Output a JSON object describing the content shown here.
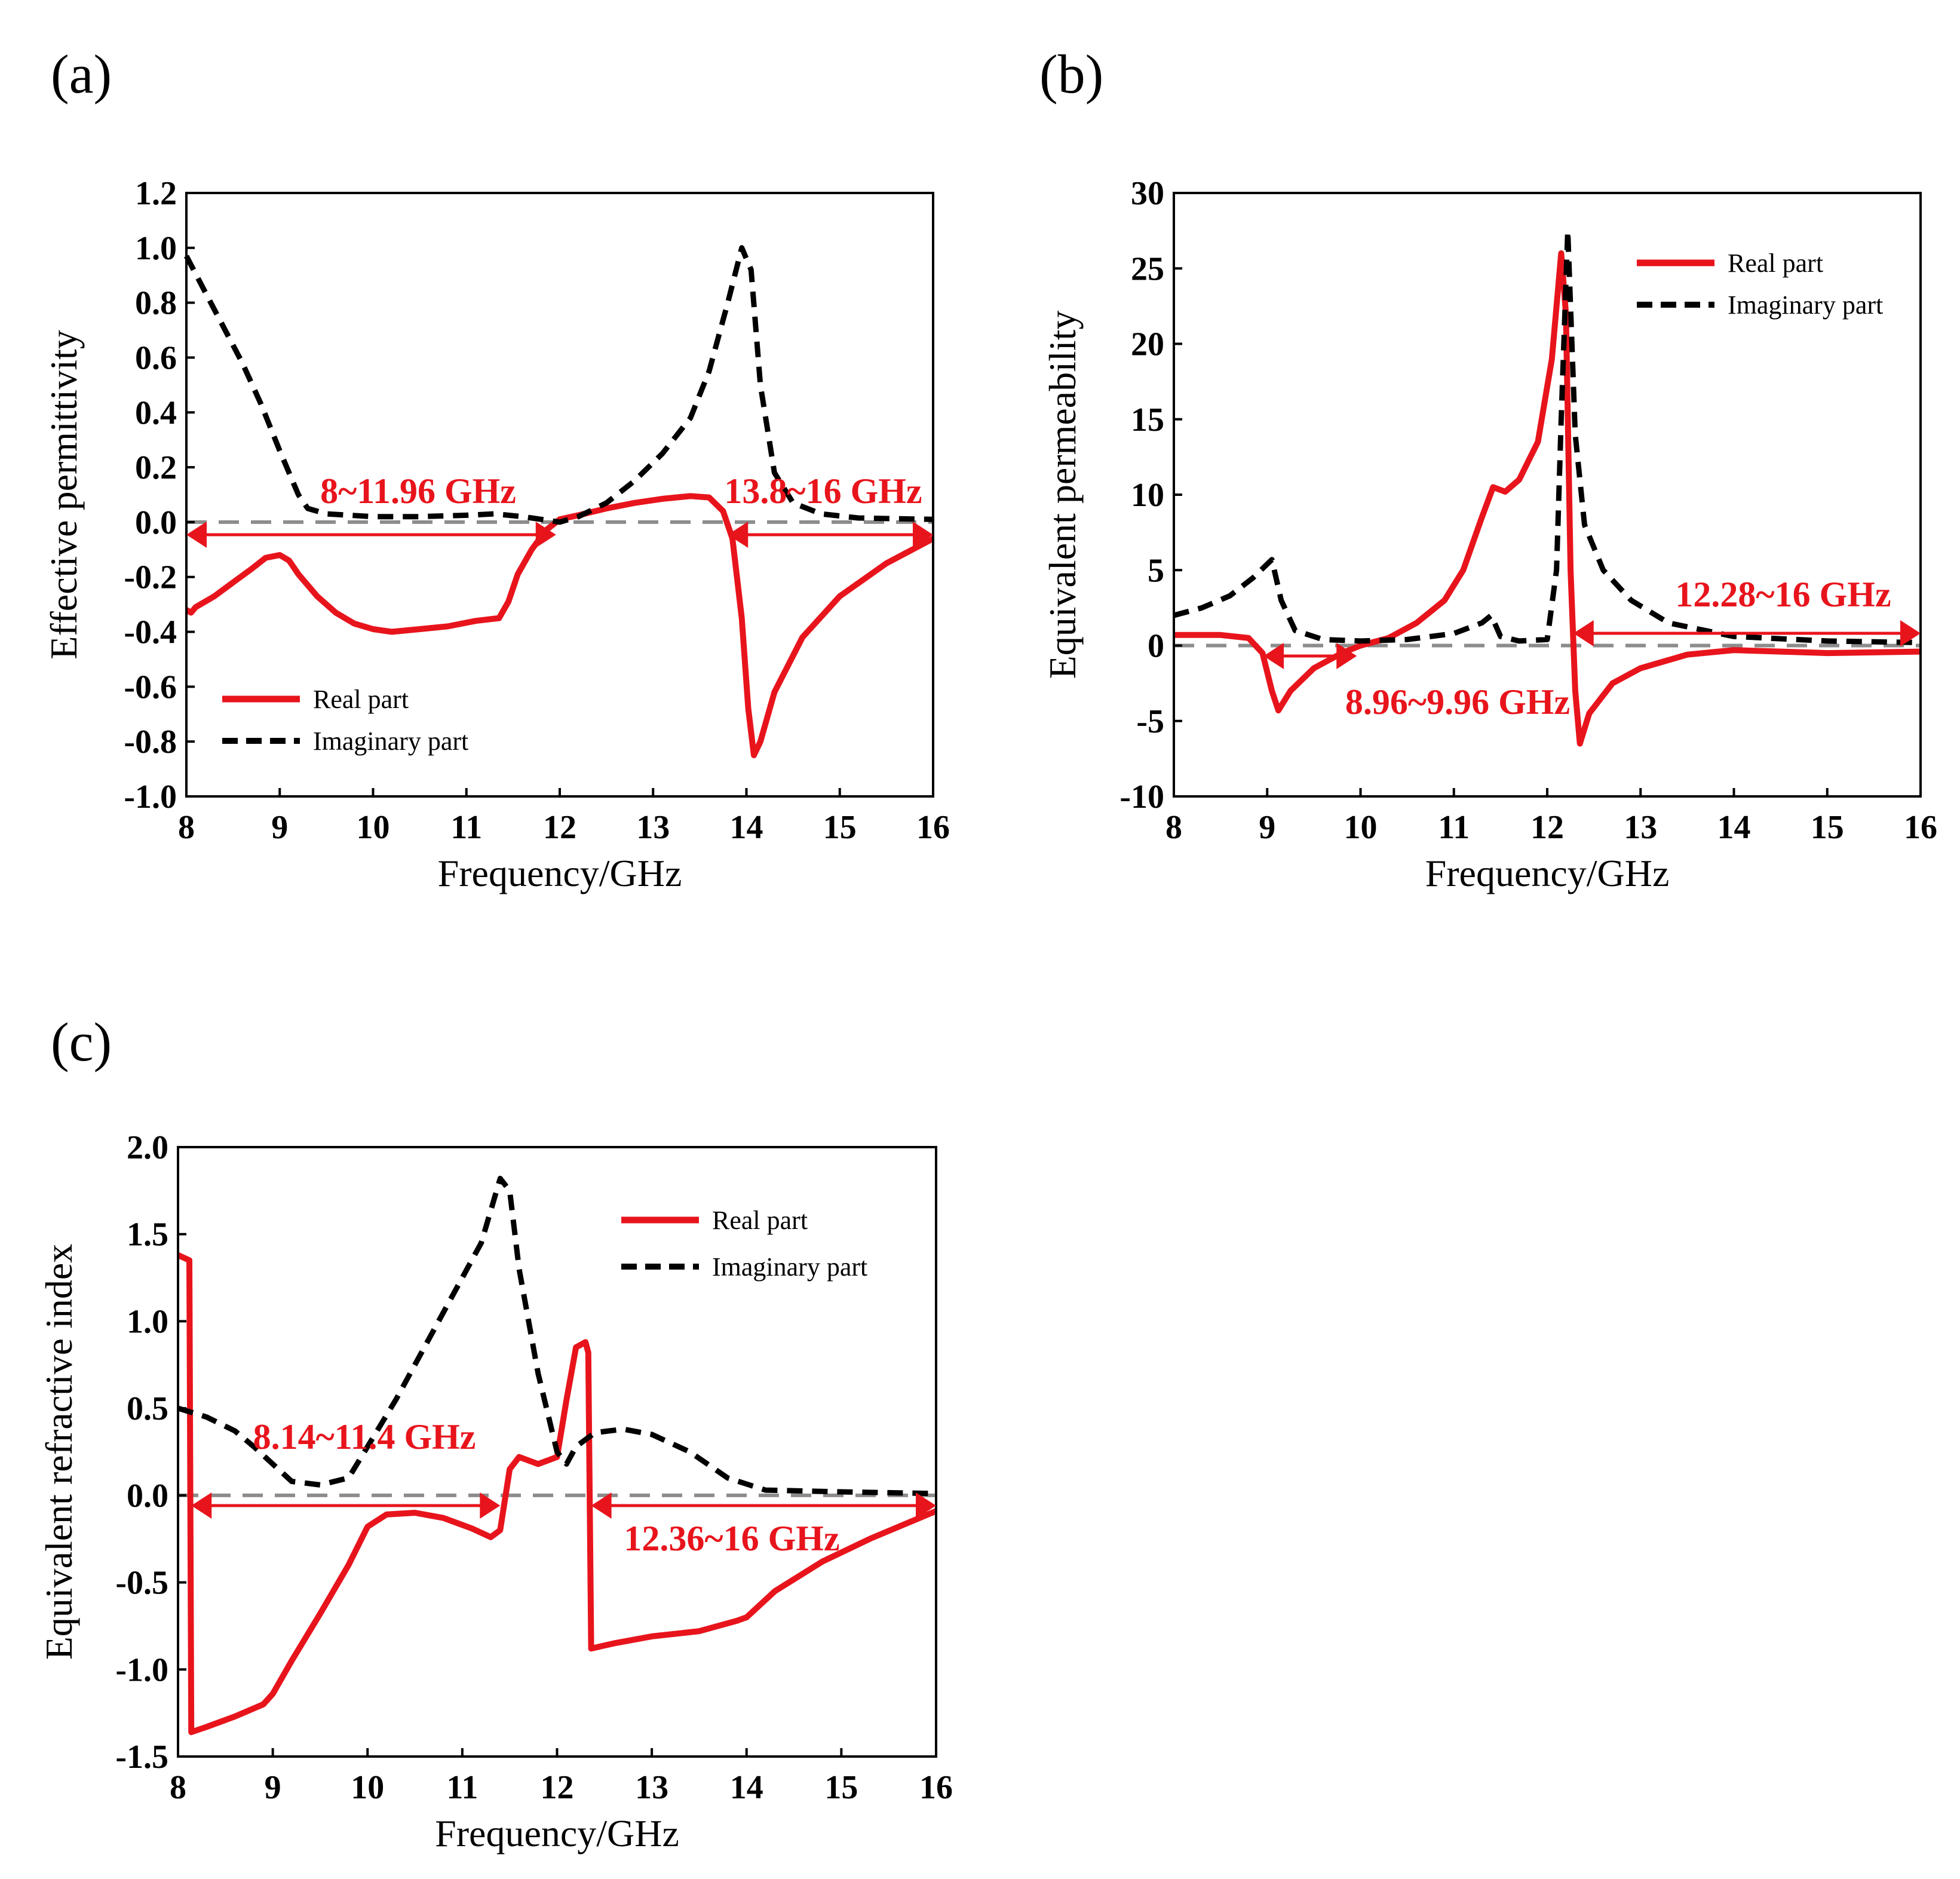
{
  "colors": {
    "real": "#e8141c",
    "imag": "#000000",
    "zero": "#8c8c8c",
    "axis": "#000000"
  },
  "chart_data": [
    {
      "panel_label": "(a)",
      "type": "line",
      "xlabel": "Frequency/GHz",
      "ylabel": "Effective permittivity",
      "xlim": [
        8,
        16
      ],
      "ylim": [
        -1.0,
        1.2
      ],
      "x_ticks": [
        8,
        9,
        10,
        11,
        12,
        13,
        14,
        15,
        16
      ],
      "x_tick_labels": [
        "8",
        "9",
        "10",
        "11",
        "12",
        "13",
        "14",
        "15",
        "16"
      ],
      "y_ticks": [
        -1.0,
        -0.8,
        -0.6,
        -0.4,
        -0.2,
        0.0,
        0.2,
        0.4,
        0.6,
        0.8,
        1.0,
        1.2
      ],
      "y_tick_labels": [
        "-1.0",
        "-0.8",
        "-0.6",
        "-0.4",
        "-0.2",
        "0.0",
        "0.2",
        "0.4",
        "0.6",
        "0.8",
        "1.0",
        "1.2"
      ],
      "legend": {
        "position": "bottom-left",
        "entries": [
          "Real part",
          "Imaginary part"
        ]
      },
      "series": [
        {
          "name": "Real part",
          "style": "solid",
          "points": [
            [
              8.0,
              -0.32
            ],
            [
              8.05,
              -0.33
            ],
            [
              8.1,
              -0.31
            ],
            [
              8.3,
              -0.27
            ],
            [
              8.5,
              -0.22
            ],
            [
              8.7,
              -0.17
            ],
            [
              8.85,
              -0.13
            ],
            [
              9.0,
              -0.12
            ],
            [
              9.1,
              -0.14
            ],
            [
              9.2,
              -0.19
            ],
            [
              9.4,
              -0.27
            ],
            [
              9.6,
              -0.33
            ],
            [
              9.8,
              -0.37
            ],
            [
              10.0,
              -0.39
            ],
            [
              10.2,
              -0.4
            ],
            [
              10.5,
              -0.39
            ],
            [
              10.8,
              -0.38
            ],
            [
              11.1,
              -0.36
            ],
            [
              11.35,
              -0.35
            ],
            [
              11.45,
              -0.29
            ],
            [
              11.55,
              -0.19
            ],
            [
              11.7,
              -0.1
            ],
            [
              11.85,
              -0.03
            ],
            [
              12.0,
              0.01
            ],
            [
              12.2,
              0.025
            ],
            [
              12.5,
              0.05
            ],
            [
              12.8,
              0.07
            ],
            [
              13.1,
              0.085
            ],
            [
              13.4,
              0.095
            ],
            [
              13.6,
              0.09
            ],
            [
              13.75,
              0.04
            ],
            [
              13.85,
              -0.06
            ],
            [
              13.95,
              -0.35
            ],
            [
              14.02,
              -0.68
            ],
            [
              14.08,
              -0.85
            ],
            [
              14.15,
              -0.8
            ],
            [
              14.3,
              -0.62
            ],
            [
              14.6,
              -0.42
            ],
            [
              15.0,
              -0.27
            ],
            [
              15.5,
              -0.15
            ],
            [
              16.0,
              -0.06
            ]
          ]
        },
        {
          "name": "Imaginary part",
          "style": "dashed",
          "points": [
            [
              8.0,
              0.97
            ],
            [
              8.2,
              0.84
            ],
            [
              8.4,
              0.71
            ],
            [
              8.6,
              0.58
            ],
            [
              8.8,
              0.43
            ],
            [
              9.0,
              0.26
            ],
            [
              9.2,
              0.1
            ],
            [
              9.3,
              0.05
            ],
            [
              9.5,
              0.03
            ],
            [
              10.0,
              0.02
            ],
            [
              10.5,
              0.02
            ],
            [
              11.0,
              0.025
            ],
            [
              11.3,
              0.03
            ],
            [
              11.6,
              0.02
            ],
            [
              11.9,
              0.005
            ],
            [
              12.0,
              0.0
            ],
            [
              12.2,
              0.02
            ],
            [
              12.5,
              0.07
            ],
            [
              12.8,
              0.15
            ],
            [
              13.1,
              0.25
            ],
            [
              13.4,
              0.38
            ],
            [
              13.6,
              0.55
            ],
            [
              13.8,
              0.8
            ],
            [
              13.95,
              1.0
            ],
            [
              14.05,
              0.92
            ],
            [
              14.15,
              0.5
            ],
            [
              14.3,
              0.18
            ],
            [
              14.5,
              0.07
            ],
            [
              14.8,
              0.03
            ],
            [
              15.2,
              0.015
            ],
            [
              16.0,
              0.01
            ]
          ]
        }
      ],
      "bands": [
        {
          "label": "8~11.96 GHz",
          "x_start": 8.0,
          "x_end": 11.96
        },
        {
          "label": "13.8~16 GHz",
          "x_start": 13.8,
          "x_end": 16.0
        }
      ]
    },
    {
      "panel_label": "(b)",
      "type": "line",
      "xlabel": "Frequency/GHz",
      "ylabel": "Equivalent permeability",
      "xlim": [
        8,
        16
      ],
      "ylim": [
        -10,
        30
      ],
      "x_ticks": [
        8,
        9,
        10,
        11,
        12,
        13,
        14,
        15,
        16
      ],
      "x_tick_labels": [
        "8",
        "9",
        "10",
        "11",
        "12",
        "13",
        "14",
        "15",
        "16"
      ],
      "y_ticks": [
        -10,
        -5,
        0,
        5,
        10,
        15,
        20,
        25,
        30
      ],
      "y_tick_labels": [
        "-10",
        "-5",
        "0",
        "5",
        "10",
        "15",
        "20",
        "25",
        "30"
      ],
      "legend": {
        "position": "top-right",
        "entries": [
          "Real part",
          "Imaginary part"
        ]
      },
      "series": [
        {
          "name": "Real part",
          "style": "solid",
          "points": [
            [
              8.0,
              0.7
            ],
            [
              8.5,
              0.7
            ],
            [
              8.8,
              0.5
            ],
            [
              8.95,
              -0.5
            ],
            [
              9.05,
              -3.0
            ],
            [
              9.12,
              -4.3
            ],
            [
              9.25,
              -3.0
            ],
            [
              9.5,
              -1.5
            ],
            [
              9.8,
              -0.5
            ],
            [
              10.0,
              0.0
            ],
            [
              10.3,
              0.5
            ],
            [
              10.6,
              1.5
            ],
            [
              10.9,
              3.0
            ],
            [
              11.1,
              5.0
            ],
            [
              11.3,
              8.5
            ],
            [
              11.42,
              10.5
            ],
            [
              11.55,
              10.2
            ],
            [
              11.7,
              11.0
            ],
            [
              11.9,
              13.5
            ],
            [
              12.05,
              19.0
            ],
            [
              12.15,
              26.0
            ],
            [
              12.2,
              22.0
            ],
            [
              12.25,
              5.0
            ],
            [
              12.3,
              -3.0
            ],
            [
              12.35,
              -6.5
            ],
            [
              12.45,
              -4.5
            ],
            [
              12.7,
              -2.5
            ],
            [
              13.0,
              -1.5
            ],
            [
              13.5,
              -0.6
            ],
            [
              14.0,
              -0.3
            ],
            [
              14.5,
              -0.4
            ],
            [
              15.0,
              -0.5
            ],
            [
              16.0,
              -0.4
            ]
          ]
        },
        {
          "name": "Imaginary part",
          "style": "dashed",
          "points": [
            [
              8.0,
              2.0
            ],
            [
              8.3,
              2.5
            ],
            [
              8.6,
              3.3
            ],
            [
              8.85,
              4.5
            ],
            [
              9.05,
              5.7
            ],
            [
              9.15,
              3.0
            ],
            [
              9.3,
              1.0
            ],
            [
              9.6,
              0.4
            ],
            [
              10.0,
              0.3
            ],
            [
              10.5,
              0.4
            ],
            [
              11.0,
              0.8
            ],
            [
              11.3,
              1.5
            ],
            [
              11.4,
              2.0
            ],
            [
              11.5,
              0.6
            ],
            [
              11.7,
              0.3
            ],
            [
              12.0,
              0.4
            ],
            [
              12.1,
              5.0
            ],
            [
              12.15,
              15.0
            ],
            [
              12.22,
              27.5
            ],
            [
              12.3,
              14.0
            ],
            [
              12.4,
              8.0
            ],
            [
              12.6,
              5.0
            ],
            [
              12.9,
              3.0
            ],
            [
              13.3,
              1.5
            ],
            [
              14.0,
              0.6
            ],
            [
              15.0,
              0.3
            ],
            [
              16.0,
              0.2
            ]
          ]
        }
      ],
      "bands": [
        {
          "label": "8.96~9.96 GHz",
          "x_start": 8.96,
          "x_end": 9.96
        },
        {
          "label": "12.28~16 GHz",
          "x_start": 12.28,
          "x_end": 16.0
        }
      ]
    },
    {
      "panel_label": "(c)",
      "type": "line",
      "xlabel": "Frequency/GHz",
      "ylabel": "Equivalent refractive index",
      "xlim": [
        8,
        16
      ],
      "ylim": [
        -1.5,
        2.0
      ],
      "x_ticks": [
        8,
        9,
        10,
        11,
        12,
        13,
        14,
        15,
        16
      ],
      "x_tick_labels": [
        "8",
        "9",
        "10",
        "11",
        "12",
        "13",
        "14",
        "15",
        "16"
      ],
      "y_ticks": [
        -1.5,
        -1.0,
        -0.5,
        0.0,
        0.5,
        1.0,
        1.5,
        2.0
      ],
      "y_tick_labels": [
        "-1.5",
        "-1.0",
        "-0.5",
        "0.0",
        "0.5",
        "1.0",
        "1.5",
        "2.0"
      ],
      "legend": {
        "position": "top-right",
        "entries": [
          "Real part",
          "Imaginary part"
        ]
      },
      "series": [
        {
          "name": "Real part",
          "style": "solid",
          "points": [
            [
              8.0,
              1.38
            ],
            [
              8.12,
              1.35
            ],
            [
              8.14,
              -1.36
            ],
            [
              8.3,
              -1.33
            ],
            [
              8.6,
              -1.27
            ],
            [
              8.9,
              -1.2
            ],
            [
              9.0,
              -1.14
            ],
            [
              9.2,
              -0.95
            ],
            [
              9.5,
              -0.68
            ],
            [
              9.8,
              -0.4
            ],
            [
              10.0,
              -0.18
            ],
            [
              10.2,
              -0.11
            ],
            [
              10.5,
              -0.1
            ],
            [
              10.8,
              -0.13
            ],
            [
              11.1,
              -0.19
            ],
            [
              11.3,
              -0.24
            ],
            [
              11.4,
              -0.2
            ],
            [
              11.5,
              0.15
            ],
            [
              11.6,
              0.22
            ],
            [
              11.8,
              0.18
            ],
            [
              12.0,
              0.22
            ],
            [
              12.1,
              0.55
            ],
            [
              12.2,
              0.85
            ],
            [
              12.3,
              0.88
            ],
            [
              12.33,
              0.82
            ],
            [
              12.36,
              -0.88
            ],
            [
              12.6,
              -0.85
            ],
            [
              13.0,
              -0.81
            ],
            [
              13.5,
              -0.78
            ],
            [
              13.9,
              -0.72
            ],
            [
              14.0,
              -0.7
            ],
            [
              14.3,
              -0.55
            ],
            [
              14.8,
              -0.38
            ],
            [
              15.3,
              -0.25
            ],
            [
              16.0,
              -0.09
            ]
          ]
        },
        {
          "name": "Imaginary part",
          "style": "dashed",
          "points": [
            [
              8.0,
              0.5
            ],
            [
              8.3,
              0.45
            ],
            [
              8.6,
              0.37
            ],
            [
              8.8,
              0.28
            ],
            [
              9.0,
              0.18
            ],
            [
              9.2,
              0.08
            ],
            [
              9.5,
              0.06
            ],
            [
              9.8,
              0.1
            ],
            [
              10.0,
              0.28
            ],
            [
              10.3,
              0.55
            ],
            [
              10.6,
              0.85
            ],
            [
              10.9,
              1.15
            ],
            [
              11.2,
              1.45
            ],
            [
              11.4,
              1.82
            ],
            [
              11.5,
              1.75
            ],
            [
              11.6,
              1.3
            ],
            [
              11.8,
              0.7
            ],
            [
              12.0,
              0.25
            ],
            [
              12.1,
              0.18
            ],
            [
              12.2,
              0.28
            ],
            [
              12.4,
              0.36
            ],
            [
              12.7,
              0.38
            ],
            [
              13.0,
              0.35
            ],
            [
              13.4,
              0.25
            ],
            [
              13.8,
              0.1
            ],
            [
              14.2,
              0.03
            ],
            [
              15.0,
              0.02
            ],
            [
              16.0,
              0.01
            ]
          ]
        }
      ],
      "bands": [
        {
          "label": "8.14~11.4 GHz",
          "x_start": 8.14,
          "x_end": 11.4
        },
        {
          "label": "12.36~16 GHz",
          "x_start": 12.36,
          "x_end": 16.0
        }
      ]
    }
  ]
}
